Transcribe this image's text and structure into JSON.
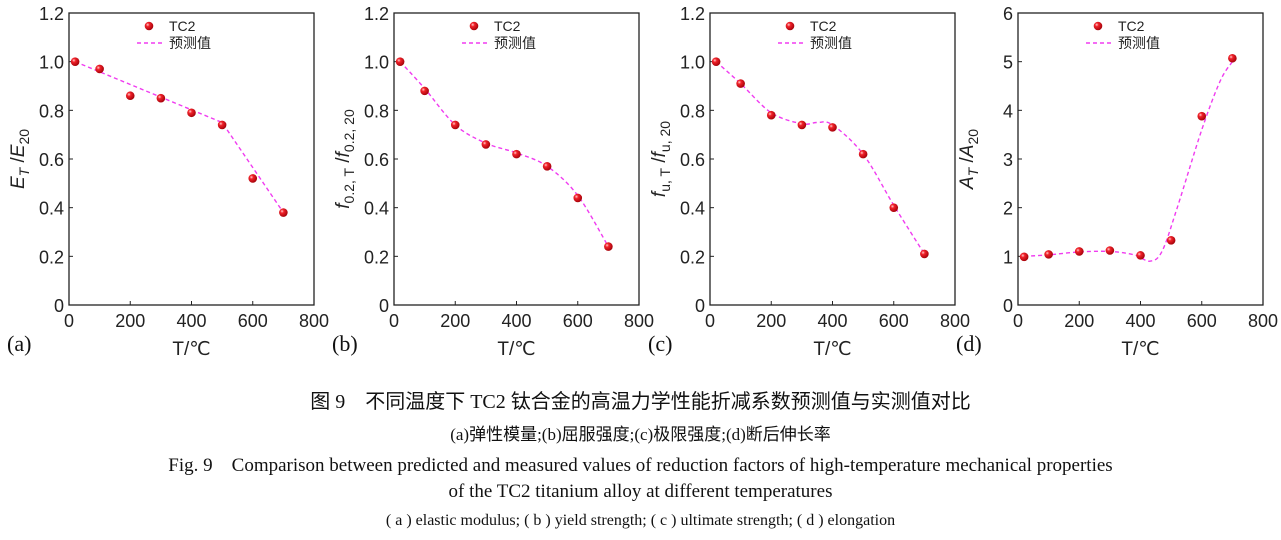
{
  "chart_data": [
    {
      "type": "scatter",
      "panel_label": "(a)",
      "xlabel": "T/℃",
      "ylabel": {
        "main": "E",
        "sub": "T",
        "sep": " /",
        "main2": "E",
        "sub2": "20"
      },
      "xlim": [
        0,
        800
      ],
      "ylim": [
        0,
        1.2
      ],
      "xticks": [
        0,
        200,
        400,
        600,
        800
      ],
      "yticks": [
        "0",
        "0.2",
        "0.4",
        "0.6",
        "0.8",
        "1.0",
        "1.2"
      ],
      "legend": {
        "position": "top-center",
        "entries": [
          "TC2",
          "预测值"
        ]
      },
      "grid": false,
      "series": [
        {
          "name": "TC2",
          "kind": "markers",
          "color": "#e8141c",
          "x": [
            20,
            100,
            200,
            300,
            400,
            500,
            600,
            700
          ],
          "y": [
            1.0,
            0.97,
            0.86,
            0.85,
            0.79,
            0.74,
            0.52,
            0.38
          ]
        },
        {
          "name": "预测值",
          "kind": "dashed-line",
          "color": "#f03cf0",
          "interp": "linear",
          "x": [
            20,
            500,
            700
          ],
          "y": [
            1.0,
            0.75,
            0.38
          ]
        }
      ]
    },
    {
      "type": "scatter",
      "panel_label": "(b)",
      "xlabel": "T/℃",
      "ylabel": {
        "main": "f",
        "sub": "0.2, T",
        "sep": " /",
        "main2": "f",
        "sub2": "0.2, 20"
      },
      "xlim": [
        0,
        800
      ],
      "ylim": [
        0,
        1.2
      ],
      "xticks": [
        0,
        200,
        400,
        600,
        800
      ],
      "yticks": [
        "0",
        "0.2",
        "0.4",
        "0.6",
        "0.8",
        "1.0",
        "1.2"
      ],
      "legend": {
        "position": "top-center",
        "entries": [
          "TC2",
          "预测值"
        ]
      },
      "grid": false,
      "series": [
        {
          "name": "TC2",
          "kind": "markers",
          "color": "#e8141c",
          "x": [
            20,
            100,
            200,
            300,
            400,
            500,
            600,
            700
          ],
          "y": [
            1.0,
            0.88,
            0.74,
            0.66,
            0.62,
            0.57,
            0.44,
            0.24
          ]
        },
        {
          "name": "预测值",
          "kind": "dashed-line",
          "color": "#f03cf0",
          "interp": "smooth",
          "x": [
            20,
            100,
            200,
            300,
            400,
            500,
            600,
            700
          ],
          "y": [
            1.0,
            0.89,
            0.74,
            0.665,
            0.625,
            0.57,
            0.45,
            0.24
          ]
        }
      ]
    },
    {
      "type": "scatter",
      "panel_label": "(c)",
      "xlabel": "T/℃",
      "ylabel": {
        "main": "f",
        "sub": "u, T",
        "sep": " /",
        "main2": "f",
        "sub2": "u, 20"
      },
      "xlim": [
        0,
        800
      ],
      "ylim": [
        0,
        1.2
      ],
      "xticks": [
        0,
        200,
        400,
        600,
        800
      ],
      "yticks": [
        "0",
        "0.2",
        "0.4",
        "0.6",
        "0.8",
        "1.0",
        "1.2"
      ],
      "legend": {
        "position": "top-center",
        "entries": [
          "TC2",
          "预测值"
        ]
      },
      "grid": false,
      "series": [
        {
          "name": "TC2",
          "kind": "markers",
          "color": "#e8141c",
          "x": [
            20,
            100,
            200,
            300,
            400,
            500,
            600,
            700
          ],
          "y": [
            1.0,
            0.91,
            0.78,
            0.74,
            0.73,
            0.62,
            0.4,
            0.21
          ]
        },
        {
          "name": "预测值",
          "kind": "dashed-line",
          "color": "#f03cf0",
          "interp": "smooth",
          "x": [
            20,
            100,
            200,
            300,
            350,
            400,
            500,
            600,
            700
          ],
          "y": [
            1.0,
            0.91,
            0.79,
            0.745,
            0.75,
            0.74,
            0.62,
            0.41,
            0.21
          ]
        }
      ]
    },
    {
      "type": "scatter",
      "panel_label": "(d)",
      "xlabel": "T/℃",
      "ylabel": {
        "main": "A",
        "sub": "T",
        "sep": " /",
        "main2": "A",
        "sub2": "20"
      },
      "xlim": [
        0,
        800
      ],
      "ylim": [
        0,
        6
      ],
      "xticks": [
        0,
        200,
        400,
        600,
        800
      ],
      "yticks": [
        "0",
        "1",
        "2",
        "3",
        "4",
        "5",
        "6"
      ],
      "legend": {
        "position": "top-center",
        "entries": [
          "TC2",
          "预测值"
        ]
      },
      "grid": false,
      "series": [
        {
          "name": "TC2",
          "kind": "markers",
          "color": "#e8141c",
          "x": [
            20,
            100,
            200,
            300,
            400,
            500,
            600,
            700
          ],
          "y": [
            0.99,
            1.04,
            1.1,
            1.12,
            1.02,
            1.33,
            3.88,
            5.07
          ]
        },
        {
          "name": "预测值",
          "kind": "dashed-line",
          "color": "#f03cf0",
          "interp": "smooth",
          "x": [
            20,
            100,
            200,
            300,
            380,
            430,
            470,
            520,
            600,
            660,
            700
          ],
          "y": [
            1.0,
            1.03,
            1.09,
            1.1,
            1.03,
            0.9,
            1.1,
            2.0,
            3.6,
            4.6,
            5.0
          ]
        }
      ]
    }
  ],
  "caption": {
    "zh_title": "图 9　不同温度下 TC2 钛合金的高温力学性能折减系数预测值与实测值对比",
    "zh_sub": "(a)弹性模量;(b)屈服强度;(c)极限强度;(d)断后伸长率",
    "en_title_1": "Fig. 9　Comparison between predicted and measured values of reduction factors of high-temperature mechanical properties",
    "en_title_2": "of the TC2 titanium alloy at different temperatures",
    "en_sub": "( a ) elastic modulus; ( b ) yield strength; ( c ) ultimate strength; ( d ) elongation"
  }
}
